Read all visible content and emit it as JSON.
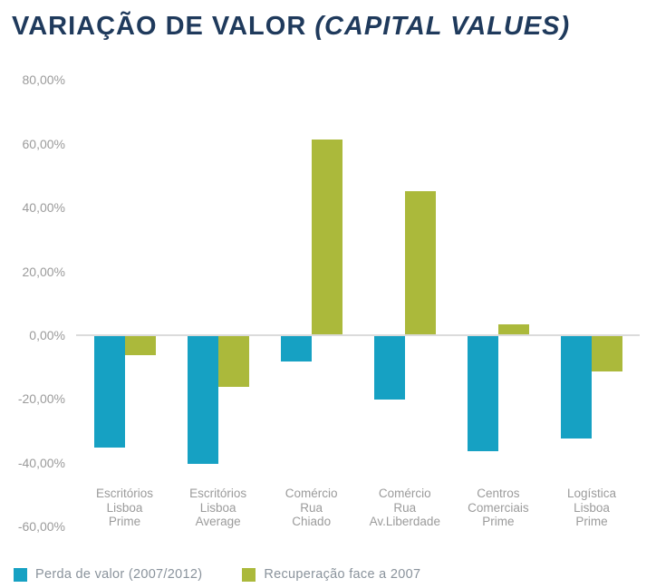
{
  "title": {
    "main": "VARIAÇÃO DE VALOR ",
    "italic": "(CAPITAL VALUES)",
    "full": "VARIAÇÃO DE VALOR (CAPITAL VALUES)"
  },
  "colors": {
    "title_text": "#1F3A5C",
    "perda": "#16A1C3",
    "recuperacao": "#ABB93B",
    "axis_text": "#9B9B9B",
    "legend_text": "#8A939C",
    "zero_line": "#DBDBDB",
    "background": "#FFFFFF"
  },
  "y_axis": {
    "ticks": [
      {
        "value": 80,
        "label": "80,00%"
      },
      {
        "value": 60,
        "label": "60,00%"
      },
      {
        "value": 40,
        "label": "40,00%"
      },
      {
        "value": 20,
        "label": "20,00%"
      },
      {
        "value": 0,
        "label": "0,00%"
      },
      {
        "value": -20,
        "label": "-20,00%"
      },
      {
        "value": -40,
        "label": "-40,00%"
      },
      {
        "value": -60,
        "label": "-60,00%"
      }
    ]
  },
  "legend": [
    {
      "series": "perda",
      "label": "Perda de valor (2007/2012)"
    },
    {
      "series": "recuperacao",
      "label": "Recuperação face a 2007"
    }
  ],
  "chart_data": {
    "type": "bar",
    "title": "VARIAÇÃO DE VALOR (CAPITAL VALUES)",
    "xlabel": "",
    "ylabel": "",
    "ylim": [
      -60,
      80
    ],
    "y_tick_step": 20,
    "grid": false,
    "legend_position": "bottom-left",
    "value_format": "percent (pt-PT, comma decimal)",
    "categories": [
      "Escritórios Lisboa Prime",
      "Escritórios Lisboa Average",
      "Comércio Rua Chiado",
      "Comércio Rua Av.Liberdade",
      "Centros Comerciais Prime",
      "Logística Lisboa Prime"
    ],
    "category_lines": [
      [
        "Escritórios",
        "Lisboa",
        "Prime"
      ],
      [
        "Escritórios",
        "Lisboa",
        "Average"
      ],
      [
        "Comércio",
        "Rua",
        "Chiado"
      ],
      [
        "Comércio",
        "Rua",
        "Av.Liberdade"
      ],
      [
        "Centros",
        "Comerciais",
        "Prime"
      ],
      [
        "Logística",
        "Lisboa",
        "Prime"
      ]
    ],
    "series": [
      {
        "name": "Perda de valor (2007/2012)",
        "color": "#16A1C3",
        "values": [
          -35,
          -40,
          -8,
          -20,
          -36,
          -32
        ]
      },
      {
        "name": "Recuperação face a 2007",
        "color": "#ABB93B",
        "values": [
          -6,
          -16,
          61,
          45,
          3,
          -11
        ]
      }
    ]
  }
}
